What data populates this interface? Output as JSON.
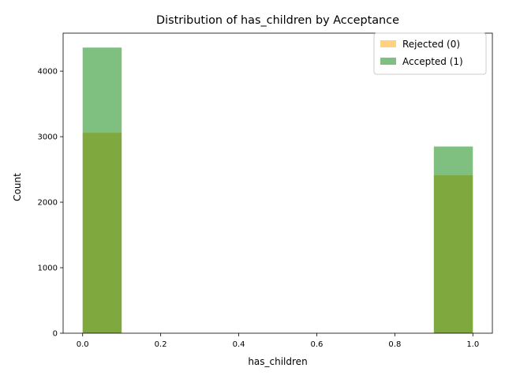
{
  "chart_data": {
    "type": "bar",
    "title": "Distribution of has_children by Acceptance",
    "xlabel": "has_children",
    "ylabel": "Count",
    "xlim": [
      -0.05,
      1.05
    ],
    "ylim": [
      0,
      4580
    ],
    "x_ticks": [
      0.0,
      0.2,
      0.4,
      0.6,
      0.8,
      1.0
    ],
    "x_tick_labels": [
      "0.0",
      "0.2",
      "0.4",
      "0.6",
      "0.8",
      "1.0"
    ],
    "y_ticks": [
      0,
      1000,
      2000,
      3000,
      4000
    ],
    "y_tick_labels": [
      "0",
      "1000",
      "2000",
      "3000",
      "4000"
    ],
    "bins": [
      {
        "start": 0.0,
        "end": 0.1
      },
      {
        "start": 0.9,
        "end": 1.0
      }
    ],
    "series": [
      {
        "name": "Rejected (0)",
        "color": "#ffa500",
        "opacity": 0.5,
        "values": [
          3060,
          2410
        ]
      },
      {
        "name": "Accepted (1)",
        "color": "#008000",
        "opacity": 0.5,
        "values": [
          4360,
          2850
        ]
      }
    ],
    "legend_position": "top-right",
    "grid": false
  }
}
